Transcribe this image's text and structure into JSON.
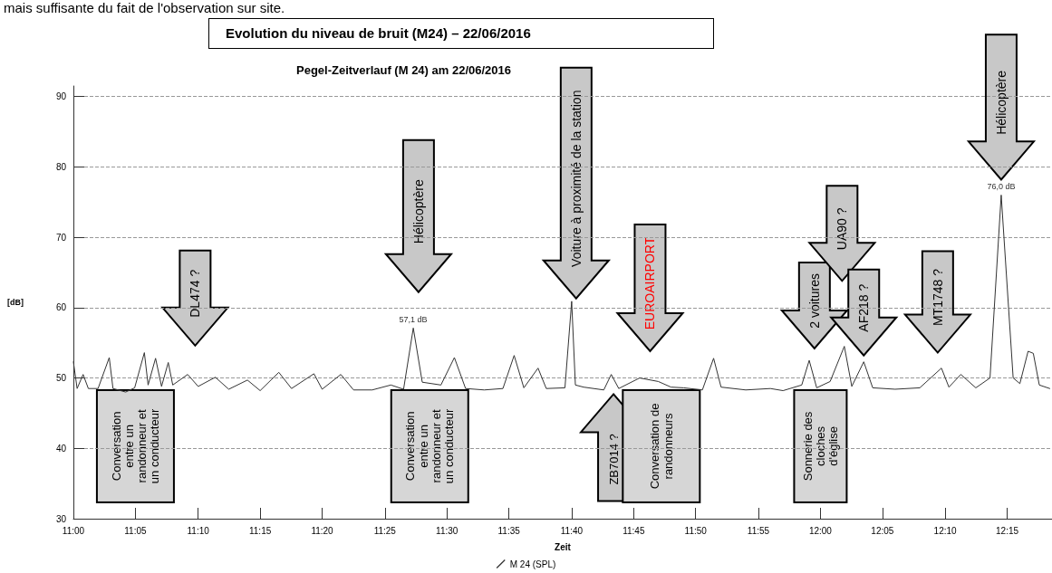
{
  "chart_data": {
    "type": "line",
    "title": "Pegel-Zeitverlauf (M 24) am 22/06/2016",
    "subtitle": "Evolution du niveau de bruit (M24) – 22/06/2016",
    "xlabel": "Zeit",
    "ylabel": "[dB]",
    "annotations": [
      "mais suffisante du fait de l'observation sur site.",
      "Conversation entre un randonneur et un conducteur",
      "DL474  ?",
      "Hélicoptère",
      "Conversation entre un randonneur et un conducteur",
      "Voiture à proximité de la station",
      "EUROAIRPORT",
      "ZB7014 ?",
      "Conversation de randonneurs",
      "2 voitures",
      "Sonnerie des cloches d'église",
      "UA90  ?",
      "AF218  ?",
      "MT1748 ?",
      "Hélicoptère"
    ],
    "x": [
      11.0,
      11.005,
      11.013,
      11.02,
      11.033,
      11.048,
      11.053,
      11.07,
      11.082,
      11.095,
      11.1,
      11.11,
      11.118,
      11.127,
      11.133,
      11.153,
      11.167,
      11.19,
      11.208,
      11.233,
      11.25,
      11.275,
      11.292,
      11.322,
      11.333,
      11.358,
      11.375,
      11.4,
      11.425,
      11.442,
      11.455,
      11.467,
      11.492,
      11.51,
      11.525,
      11.55,
      11.575,
      11.59,
      11.603,
      11.622,
      11.633,
      11.658,
      11.667,
      11.672,
      11.683,
      11.71,
      11.72,
      11.73,
      11.758,
      11.783,
      11.8,
      11.817,
      11.842,
      11.857,
      11.867,
      11.9,
      11.933,
      11.95,
      11.975,
      11.985,
      11.995,
      12.013,
      12.032,
      12.042,
      12.058,
      12.07,
      12.1,
      12.133,
      12.162,
      12.172,
      12.188,
      12.208,
      12.227,
      12.242,
      12.258,
      12.267,
      12.278,
      12.285,
      12.293,
      12.307
    ],
    "series": [
      {
        "name": "M 24 (SPL)",
        "color": "#333333",
        "values": [
          52.3,
          48.5,
          50.5,
          48.5,
          48.5,
          52.9,
          48.5,
          48.0,
          48.6,
          53.6,
          49.0,
          52.8,
          48.8,
          52.2,
          49.0,
          50.5,
          48.8,
          50.1,
          48.4,
          49.7,
          48.2,
          50.8,
          48.5,
          50.6,
          48.4,
          50.5,
          48.3,
          48.3,
          49.0,
          48.4,
          57.1,
          49.4,
          49.0,
          52.9,
          48.5,
          48.3,
          48.5,
          53.2,
          48.6,
          51.4,
          48.5,
          48.6,
          60.9,
          49.0,
          48.7,
          48.3,
          50.5,
          48.5,
          50.0,
          49.5,
          48.7,
          48.6,
          48.3,
          52.8,
          48.7,
          48.3,
          48.5,
          48.2,
          49.0,
          52.5,
          48.6,
          49.5,
          54.5,
          48.8,
          52.3,
          48.6,
          48.4,
          48.6,
          51.4,
          48.7,
          50.5,
          48.6,
          50.0,
          76.0,
          50.0,
          49.2,
          53.8,
          53.5,
          49.0,
          48.5
        ],
        "value_labels": [
          null,
          null,
          null,
          null,
          null,
          null,
          null,
          null,
          null,
          null,
          null,
          null,
          null,
          null,
          null,
          null,
          null,
          null,
          null,
          null,
          null,
          null,
          null,
          null,
          null,
          null,
          null,
          null,
          null,
          null,
          "57,1 dB",
          null,
          null,
          null,
          null,
          null,
          null,
          null,
          null,
          null,
          null,
          null,
          null,
          null,
          null,
          null,
          null,
          null,
          null,
          null,
          null,
          null,
          null,
          null,
          null,
          null,
          null,
          null,
          null,
          null,
          null,
          null,
          null,
          null,
          null,
          null,
          null,
          null,
          null,
          null,
          null,
          null,
          null,
          "76,0 dB",
          null,
          null,
          null,
          null,
          null,
          null
        ]
      }
    ],
    "xlim": [
      11.0,
      12.31
    ],
    "xticks": [
      {
        "value": 11.0,
        "label": "11:00"
      },
      {
        "value": 11.083,
        "label": "11:05"
      },
      {
        "value": 11.167,
        "label": "11:10"
      },
      {
        "value": 11.25,
        "label": "11:15"
      },
      {
        "value": 11.333,
        "label": "11:20"
      },
      {
        "value": 11.417,
        "label": "11:25"
      },
      {
        "value": 11.5,
        "label": "11:30"
      },
      {
        "value": 11.583,
        "label": "11:35"
      },
      {
        "value": 11.667,
        "label": "11:40"
      },
      {
        "value": 11.75,
        "label": "11:45"
      },
      {
        "value": 11.833,
        "label": "11:50"
      },
      {
        "value": 11.917,
        "label": "11:55"
      },
      {
        "value": 12.0,
        "label": "12:00"
      },
      {
        "value": 12.083,
        "label": "12:05"
      },
      {
        "value": 12.167,
        "label": "12:10"
      },
      {
        "value": 12.25,
        "label": "12:15"
      }
    ],
    "ylim": [
      30,
      91.5
    ],
    "yticks": [
      30,
      40,
      50,
      60,
      70,
      80,
      90
    ],
    "grid": "y",
    "legend": "bottom"
  }
}
